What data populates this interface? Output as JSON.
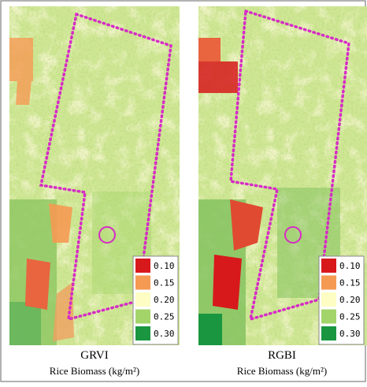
{
  "panels": [
    {
      "title": "GRVI",
      "subtitle": "Rice Biomass (kg/m²)",
      "legend": [
        {
          "label": "0.10",
          "color": "#d7191c"
        },
        {
          "label": "0.15",
          "color": "#f59a52"
        },
        {
          "label": "0.20",
          "color": "#fdfdc4"
        },
        {
          "label": "0.25",
          "color": "#a3d46a"
        },
        {
          "label": "0.30",
          "color": "#1a9641"
        }
      ]
    },
    {
      "title": "RGBI",
      "subtitle": "Rice Biomass (kg/m²)",
      "legend": [
        {
          "label": "0.10",
          "color": "#d7191c"
        },
        {
          "label": "0.15",
          "color": "#f59a52"
        },
        {
          "label": "0.20",
          "color": "#fdfdc4"
        },
        {
          "label": "0.25",
          "color": "#a3d46a"
        },
        {
          "label": "0.30",
          "color": "#1a9641"
        }
      ]
    }
  ]
}
